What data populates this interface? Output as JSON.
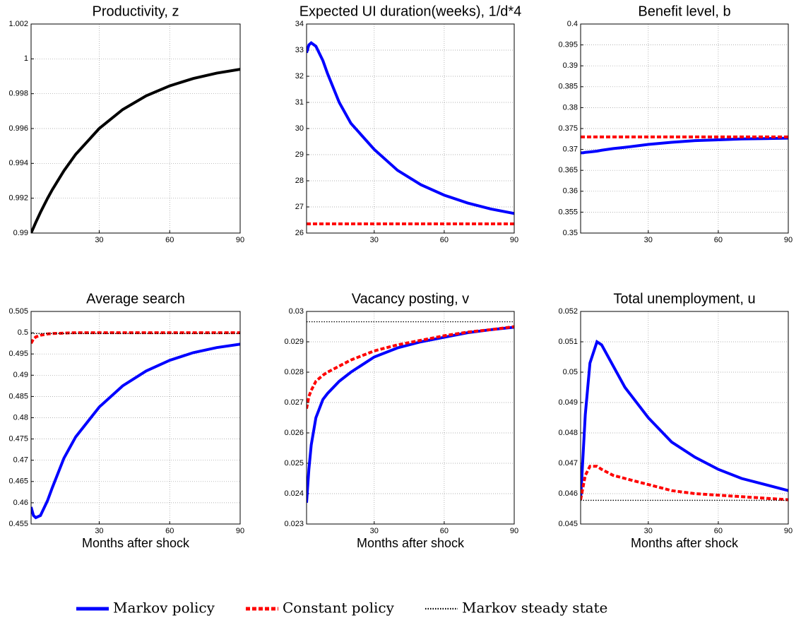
{
  "chart_data": [
    {
      "type": "line",
      "title": "Productivity, z",
      "x": [
        1,
        2,
        3,
        5,
        8,
        10,
        15,
        20,
        30,
        40,
        50,
        60,
        70,
        80,
        90
      ],
      "xlim": [
        1,
        90
      ],
      "xticks": [
        30,
        60,
        90
      ],
      "ylim": [
        0.99,
        1.002
      ],
      "yticks": [
        0.99,
        0.992,
        0.994,
        0.996,
        0.998,
        1,
        1.002
      ],
      "grid": true,
      "series": [
        {
          "color": "#000000",
          "style": "solid",
          "values": [
            0.99,
            0.9903,
            0.99061,
            0.99119,
            0.99199,
            0.99248,
            0.99358,
            0.99452,
            0.996,
            0.99709,
            0.99788,
            0.99845,
            0.99887,
            0.99918,
            0.9994
          ]
        }
      ]
    },
    {
      "type": "line",
      "title": "Expected UI duration(weeks), 1/d*4",
      "x": [
        1,
        2,
        3,
        5,
        8,
        10,
        15,
        20,
        30,
        40,
        50,
        60,
        70,
        80,
        90
      ],
      "xlim": [
        1,
        90
      ],
      "xticks": [
        30,
        60,
        90
      ],
      "ylim": [
        26,
        34
      ],
      "yticks": [
        26,
        27,
        28,
        29,
        30,
        31,
        32,
        33,
        34
      ],
      "grid": true,
      "series": [
        {
          "color": "#0000ff",
          "style": "solid",
          "values": [
            32.9,
            33.2,
            33.28,
            33.15,
            32.6,
            32.1,
            31.0,
            30.2,
            29.2,
            28.4,
            27.85,
            27.45,
            27.15,
            26.92,
            26.75
          ]
        },
        {
          "color": "#ff0000",
          "style": "dashed",
          "values": [
            26.35,
            26.35,
            26.35,
            26.35,
            26.35,
            26.35,
            26.35,
            26.35,
            26.35,
            26.35,
            26.35,
            26.35,
            26.35,
            26.35,
            26.35
          ]
        }
      ]
    },
    {
      "type": "line",
      "title": "Benefit level, b",
      "x": [
        1,
        2,
        3,
        5,
        8,
        10,
        15,
        20,
        30,
        40,
        50,
        60,
        70,
        80,
        90
      ],
      "xlim": [
        1,
        90
      ],
      "xticks": [
        30,
        60,
        90
      ],
      "ylim": [
        0.35,
        0.4
      ],
      "yticks": [
        0.35,
        0.355,
        0.36,
        0.365,
        0.37,
        0.375,
        0.38,
        0.385,
        0.39,
        0.395,
        0.4
      ],
      "grid": true,
      "series": [
        {
          "color": "#0000ff",
          "style": "solid",
          "values": [
            0.3692,
            0.3692,
            0.3693,
            0.3694,
            0.3696,
            0.3698,
            0.3702,
            0.3705,
            0.3712,
            0.3717,
            0.3721,
            0.3723,
            0.3725,
            0.3726,
            0.3727
          ]
        },
        {
          "color": "#ff0000",
          "style": "dashed",
          "values": [
            0.373,
            0.373,
            0.373,
            0.373,
            0.373,
            0.373,
            0.373,
            0.373,
            0.373,
            0.373,
            0.373,
            0.373,
            0.373,
            0.373,
            0.373
          ]
        }
      ]
    },
    {
      "type": "line",
      "title": "Average search",
      "xlabel": "Months after shock",
      "x": [
        1,
        2,
        3,
        5,
        8,
        10,
        15,
        20,
        30,
        40,
        50,
        60,
        70,
        80,
        90
      ],
      "xlim": [
        1,
        90
      ],
      "xticks": [
        30,
        60,
        90
      ],
      "ylim": [
        0.455,
        0.505
      ],
      "yticks": [
        0.455,
        0.46,
        0.465,
        0.47,
        0.475,
        0.48,
        0.485,
        0.49,
        0.495,
        0.5,
        0.505
      ],
      "grid": true,
      "series": [
        {
          "color": "#0000ff",
          "style": "solid",
          "values": [
            0.459,
            0.457,
            0.4565,
            0.457,
            0.4605,
            0.4635,
            0.4705,
            0.4755,
            0.4825,
            0.4875,
            0.491,
            0.4935,
            0.4953,
            0.4965,
            0.4973
          ]
        },
        {
          "color": "#ff0000",
          "style": "dashed",
          "values": [
            0.4975,
            0.4985,
            0.499,
            0.4994,
            0.4997,
            0.4998,
            0.4999,
            0.5,
            0.5,
            0.5,
            0.5,
            0.5,
            0.5,
            0.5,
            0.5
          ]
        },
        {
          "color": "#000000",
          "style": "dotted",
          "values": [
            0.4998,
            0.4998,
            0.4998,
            0.4998,
            0.4998,
            0.4998,
            0.4998,
            0.4998,
            0.4998,
            0.4998,
            0.4998,
            0.4998,
            0.4998,
            0.4998,
            0.4998
          ]
        }
      ]
    },
    {
      "type": "line",
      "title": "Vacancy posting, v",
      "xlabel": "Months after shock",
      "x": [
        1,
        2,
        3,
        5,
        8,
        10,
        15,
        20,
        30,
        40,
        50,
        60,
        70,
        80,
        90
      ],
      "xlim": [
        1,
        90
      ],
      "xticks": [
        30,
        60,
        90
      ],
      "ylim": [
        0.023,
        0.03
      ],
      "yticks": [
        0.023,
        0.024,
        0.025,
        0.026,
        0.027,
        0.028,
        0.029,
        0.03
      ],
      "grid": true,
      "series": [
        {
          "name": "Markov policy",
          "color": "#0000ff",
          "style": "solid",
          "values": [
            0.0237,
            0.0248,
            0.0256,
            0.0265,
            0.0271,
            0.0273,
            0.0277,
            0.028,
            0.0285,
            0.0288,
            0.029,
            0.02915,
            0.0293,
            0.0294,
            0.02948
          ]
        },
        {
          "name": "Constant policy",
          "color": "#ff0000",
          "style": "dashed",
          "values": [
            0.0268,
            0.0272,
            0.0274,
            0.0277,
            0.0279,
            0.028,
            0.0282,
            0.0284,
            0.0287,
            0.0289,
            0.02905,
            0.0292,
            0.02932,
            0.0294,
            0.0295
          ]
        },
        {
          "name": "Markov steady state",
          "color": "#000000",
          "style": "dotted",
          "values": [
            0.02966,
            0.02966,
            0.02966,
            0.02966,
            0.02966,
            0.02966,
            0.02966,
            0.02966,
            0.02966,
            0.02966,
            0.02966,
            0.02966,
            0.02966,
            0.02966,
            0.02966
          ]
        }
      ]
    },
    {
      "type": "line",
      "title": "Total unemployment, u",
      "xlabel": "Months after shock",
      "x": [
        1,
        2,
        3,
        5,
        8,
        10,
        15,
        20,
        30,
        40,
        50,
        60,
        70,
        80,
        90
      ],
      "xlim": [
        1,
        90
      ],
      "xticks": [
        30,
        60,
        90
      ],
      "ylim": [
        0.045,
        0.052
      ],
      "yticks": [
        0.045,
        0.046,
        0.047,
        0.048,
        0.049,
        0.05,
        0.051,
        0.052
      ],
      "grid": true,
      "series": [
        {
          "color": "#0000ff",
          "style": "solid",
          "values": [
            0.0458,
            0.0472,
            0.0486,
            0.0503,
            0.051,
            0.0509,
            0.0502,
            0.0495,
            0.0485,
            0.0477,
            0.0472,
            0.0468,
            0.0465,
            0.0463,
            0.0461
          ]
        },
        {
          "color": "#ff0000",
          "style": "dashed",
          "values": [
            0.0458,
            0.0462,
            0.0466,
            0.0469,
            0.0469,
            0.0468,
            0.0466,
            0.0465,
            0.0463,
            0.0461,
            0.046,
            0.04595,
            0.0459,
            0.04585,
            0.0458
          ]
        },
        {
          "color": "#000000",
          "style": "dotted",
          "values": [
            0.04578,
            0.04578,
            0.04578,
            0.04578,
            0.04578,
            0.04578,
            0.04578,
            0.04578,
            0.04578,
            0.04578,
            0.04578,
            0.04578,
            0.04578,
            0.04578,
            0.04578
          ]
        }
      ]
    }
  ]
}
